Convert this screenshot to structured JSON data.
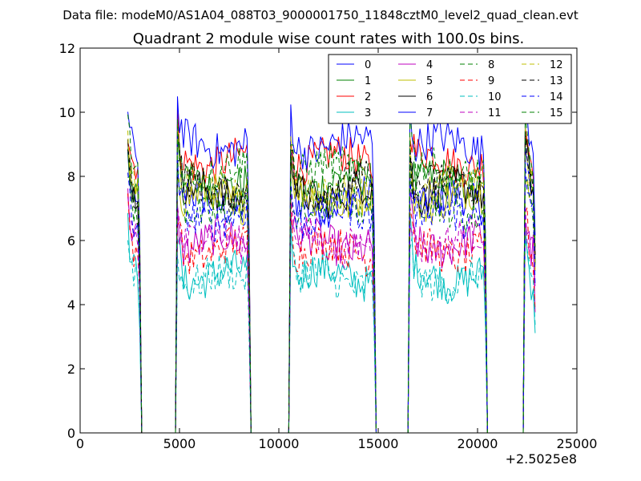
{
  "chart_data": {
    "type": "line",
    "suptitle": "Data file: modeM0/AS1A04_088T03_9000001750_11848cztM0_level2_quad_clean.evt",
    "title": "Quadrant 2 module wise count rates with 100.0s bins.",
    "xlabel": "",
    "ylabel": "",
    "xlim": [
      0,
      25000
    ],
    "ylim": [
      0,
      12
    ],
    "x_offset_label": "+2.5025e8",
    "xticks": [
      0,
      5000,
      10000,
      15000,
      20000,
      25000
    ],
    "yticks": [
      0,
      2,
      4,
      6,
      8,
      10,
      12
    ],
    "xtick_labels": [
      "0",
      "5000",
      "10000",
      "15000",
      "20000",
      "25000"
    ],
    "ytick_labels": [
      "0",
      "2",
      "4",
      "6",
      "8",
      "10",
      "12"
    ],
    "grid": false,
    "legend_position": "top-right",
    "x_start": 2400,
    "x_step": 100,
    "gti": [
      [
        2400,
        3000
      ],
      [
        4900,
        8500
      ],
      [
        10600,
        14800
      ],
      [
        16600,
        20400
      ],
      [
        22400,
        22900
      ]
    ],
    "series": [
      {
        "name": "0",
        "level": 7.2,
        "color": "#0000ff",
        "style": "solid"
      },
      {
        "name": "1",
        "level": 7.8,
        "color": "#008000",
        "style": "solid"
      },
      {
        "name": "2",
        "level": 8.5,
        "color": "#ff0000",
        "style": "solid"
      },
      {
        "name": "3",
        "level": 4.9,
        "color": "#00bfbf",
        "style": "solid"
      },
      {
        "name": "4",
        "level": 5.9,
        "color": "#bf00bf",
        "style": "solid"
      },
      {
        "name": "5",
        "level": 7.3,
        "color": "#bfbf00",
        "style": "solid"
      },
      {
        "name": "6",
        "level": 7.5,
        "color": "#000000",
        "style": "solid"
      },
      {
        "name": "7",
        "level": 9.0,
        "color": "#0000ff",
        "style": "solid"
      },
      {
        "name": "8",
        "level": 7.0,
        "color": "#008000",
        "style": "dashed"
      },
      {
        "name": "9",
        "level": 5.7,
        "color": "#ff0000",
        "style": "dashed"
      },
      {
        "name": "10",
        "level": 4.8,
        "color": "#00bfbf",
        "style": "dashed"
      },
      {
        "name": "11",
        "level": 6.0,
        "color": "#bf00bf",
        "style": "dashed"
      },
      {
        "name": "12",
        "level": 7.6,
        "color": "#bfbf00",
        "style": "dashed"
      },
      {
        "name": "13",
        "level": 7.7,
        "color": "#000000",
        "style": "dashed"
      },
      {
        "name": "14",
        "level": 6.8,
        "color": "#0000ff",
        "style": "dashed"
      },
      {
        "name": "15",
        "level": 8.2,
        "color": "#008000",
        "style": "dashed"
      }
    ]
  }
}
